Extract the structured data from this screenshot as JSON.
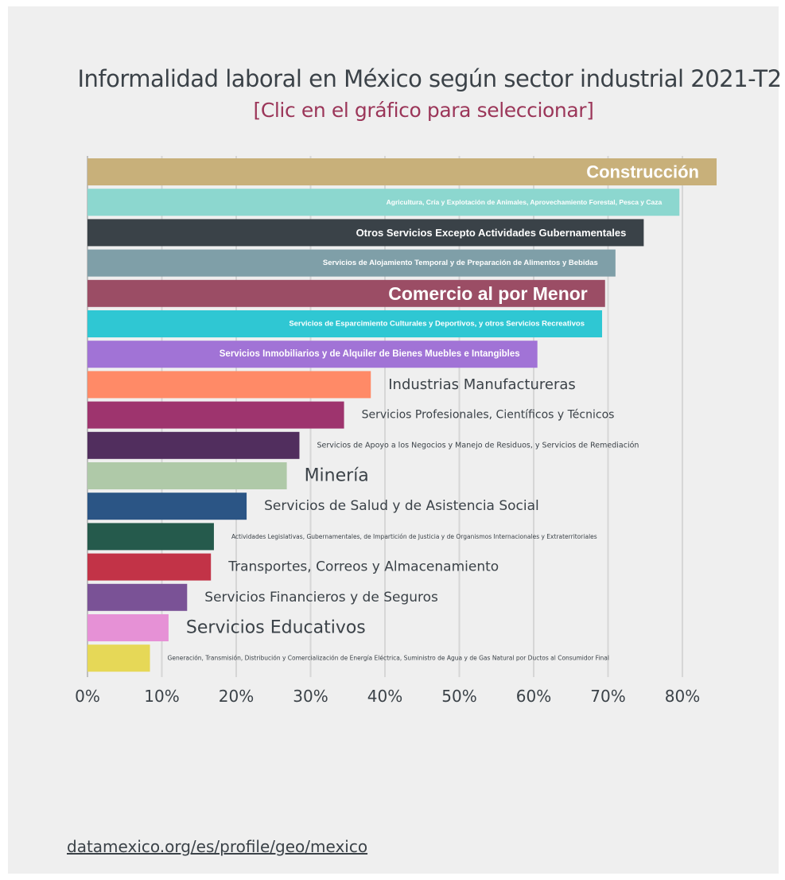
{
  "title": "Informalidad laboral en México según sector industrial 2021-T2",
  "subtitle": "[Clic en el gráfico para seleccionar]",
  "source_link": "datamexico.org/es/profile/geo/mexico",
  "chart_data": {
    "type": "bar",
    "orientation": "horizontal",
    "title": "Informalidad laboral en México según sector industrial 2021-T2",
    "subtitle": "[Clic en el gráfico para seleccionar]",
    "xlim": [
      0,
      0.85
    ],
    "x_ticks": [
      "0%",
      "10%",
      "20%",
      "30%",
      "40%",
      "50%",
      "60%",
      "70%",
      "80%"
    ],
    "grid": true,
    "bars": [
      {
        "label": "Construcción",
        "value": 0.846,
        "color": "#c8b07a",
        "label_inside": true,
        "label_color": "#ffffff",
        "font_size": 22
      },
      {
        "label": "Agricultura, Cría y Explotación de Animales, Aprovechamiento Forestal, Pesca y Caza",
        "value": 0.796,
        "color": "#8cd7cf",
        "label_inside": true,
        "label_color": "#ffffff",
        "font_size": 8.5
      },
      {
        "label": "Otros Servicios Excepto Actividades Gubernamentales",
        "value": 0.748,
        "color": "#3a4248",
        "label_inside": true,
        "label_color": "#ffffff",
        "font_size": 13
      },
      {
        "label": "Servicios de Alojamiento Temporal y de Preparación de Alimentos y Bebidas",
        "value": 0.71,
        "color": "#7f9fa8",
        "label_inside": true,
        "label_color": "#ffffff",
        "font_size": 9.5
      },
      {
        "label": "Comercio al por Menor",
        "value": 0.696,
        "color": "#9b4d65",
        "label_inside": true,
        "label_color": "#ffffff",
        "font_size": 23
      },
      {
        "label": "Servicios de Esparcimiento Culturales y Deportivos, y otros Servicios Recreativos",
        "value": 0.692,
        "color": "#2fc7d3",
        "label_inside": true,
        "label_color": "#ffffff",
        "font_size": 9.5
      },
      {
        "label": "Servicios Inmobiliarios y de Alquiler de Bienes Muebles e Intangibles",
        "value": 0.605,
        "color": "#a173d6",
        "label_inside": true,
        "label_color": "#ffffff",
        "font_size": 11.5
      },
      {
        "label": "Industrias Manufactureras",
        "value": 0.381,
        "color": "#ff8a67",
        "label_inside": false,
        "label_color": "#3b4248",
        "font_size": 18
      },
      {
        "label": "Servicios Profesionales, Científicos y Técnicos",
        "value": 0.345,
        "color": "#9e346e",
        "label_inside": false,
        "label_color": "#3b4248",
        "font_size": 14
      },
      {
        "label": "Servicios de Apoyo a los Negocios y Manejo de Residuos, y Servicios de Remediación",
        "value": 0.285,
        "color": "#512e5e",
        "label_inside": false,
        "label_color": "#3b4248",
        "font_size": 9.5
      },
      {
        "label": "Minería",
        "value": 0.268,
        "color": "#afc9a8",
        "label_inside": false,
        "label_color": "#3b4248",
        "font_size": 22
      },
      {
        "label": "Servicios de Salud y de Asistencia Social",
        "value": 0.214,
        "color": "#2b5585",
        "label_inside": false,
        "label_color": "#3b4248",
        "font_size": 17
      },
      {
        "label": "Actividades Legislativas, Gubernamentales, de Impartición de Justicia y de Organismos Internacionales y Extraterritoriales",
        "value": 0.17,
        "color": "#255a4c",
        "label_inside": false,
        "label_color": "#3b4248",
        "font_size": 7.5
      },
      {
        "label": "Transportes, Correos y Almacenamiento",
        "value": 0.166,
        "color": "#c23347",
        "label_inside": false,
        "label_color": "#3b4248",
        "font_size": 17
      },
      {
        "label": "Servicios Financieros y de Seguros",
        "value": 0.134,
        "color": "#7a5296",
        "label_inside": false,
        "label_color": "#3b4248",
        "font_size": 17
      },
      {
        "label": "Servicios Educativos",
        "value": 0.109,
        "color": "#e691d6",
        "label_inside": false,
        "label_color": "#3b4248",
        "font_size": 22
      },
      {
        "label": "Generación, Transmisión, Distribución y Comercialización de Energía Eléctrica, Suministro de Agua y de Gas Natural por Ductos al Consumidor Final",
        "value": 0.084,
        "color": "#e6d857",
        "label_inside": false,
        "label_color": "#3b4248",
        "font_size": 7.5
      }
    ]
  }
}
